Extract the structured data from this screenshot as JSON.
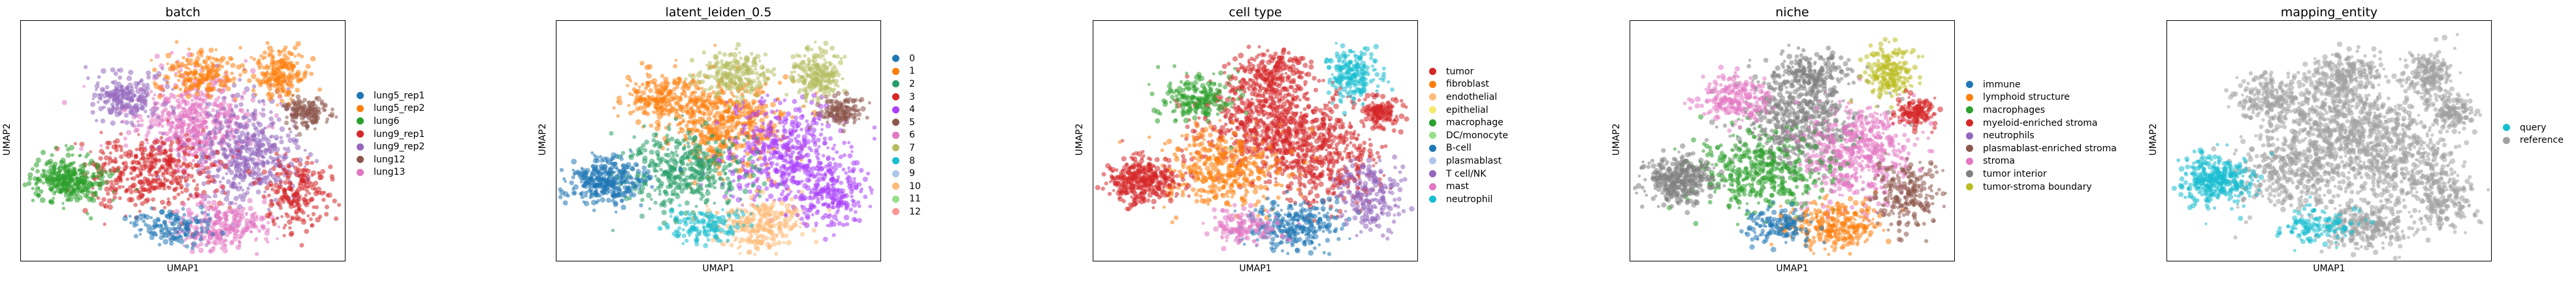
{
  "chart_data": [
    {
      "type": "scatter",
      "title": "batch",
      "xlabel": "UMAP1",
      "ylabel": "UMAP2",
      "legend_position": "right",
      "categories": [
        "lung5_rep1",
        "lung5_rep2",
        "lung6",
        "lung9_rep1",
        "lung9_rep2",
        "lung12",
        "lung13"
      ],
      "colors": [
        "#1f77b4",
        "#ff7f0e",
        "#2ca02c",
        "#d62728",
        "#9467bd",
        "#8c564b",
        "#e377c2"
      ]
    },
    {
      "type": "scatter",
      "title": "latent_leiden_0.5",
      "xlabel": "UMAP1",
      "ylabel": "UMAP2",
      "legend_position": "right",
      "categories": [
        "0",
        "1",
        "2",
        "3",
        "4",
        "5",
        "6",
        "7",
        "8",
        "9",
        "10",
        "11",
        "12"
      ],
      "colors": [
        "#1f77b4",
        "#ff7f0e",
        "#279e68",
        "#d62728",
        "#aa40fc",
        "#8c564b",
        "#e377c2",
        "#b5bd61",
        "#17becf",
        "#aec7e8",
        "#ffbb78",
        "#98df8a",
        "#ff9896"
      ]
    },
    {
      "type": "scatter",
      "title": "cell type",
      "xlabel": "UMAP1",
      "ylabel": "UMAP2",
      "legend_position": "right",
      "categories": [
        "tumor",
        "fibroblast",
        "endothelial",
        "epithelial",
        "macrophage",
        "DC/monocyte",
        "B-cell",
        "plasmablast",
        "T cell/NK",
        "mast",
        "neutrophil"
      ],
      "colors": [
        "#d62728",
        "#ff7f0e",
        "#ffbb78",
        "#f7e96a",
        "#2ca02c",
        "#98df8a",
        "#1f77b4",
        "#aec7e8",
        "#9467bd",
        "#e377c2",
        "#17becf"
      ]
    },
    {
      "type": "scatter",
      "title": "niche",
      "xlabel": "UMAP1",
      "ylabel": "UMAP2",
      "legend_position": "right",
      "categories": [
        "immune",
        "lymphoid structure",
        "macrophages",
        "myeloid-enriched stroma",
        "neutrophils",
        "plasmablast-enriched stroma",
        "stroma",
        "tumor interior",
        "tumor-stroma boundary"
      ],
      "colors": [
        "#1f77b4",
        "#ff7f0e",
        "#2ca02c",
        "#d62728",
        "#9467bd",
        "#8c564b",
        "#e377c2",
        "#7f7f7f",
        "#bcbd22"
      ]
    },
    {
      "type": "scatter",
      "title": "mapping_entity",
      "xlabel": "UMAP1",
      "ylabel": "UMAP2",
      "legend_position": "right",
      "categories": [
        "query",
        "reference"
      ],
      "colors": [
        "#17becf",
        "#a0a0a0"
      ]
    }
  ]
}
